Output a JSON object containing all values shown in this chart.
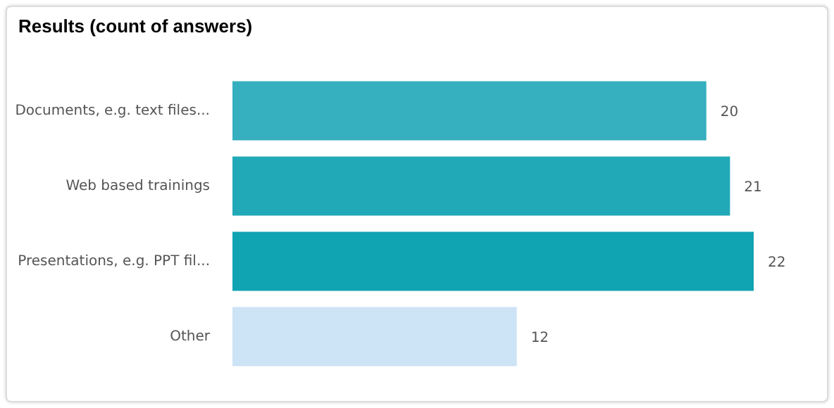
{
  "chart_data": {
    "type": "bar",
    "orientation": "horizontal",
    "title": "Results (count of answers)",
    "categories": [
      "Documents, e.g. text files...",
      "Web based trainings",
      "Presentations, e.g. PPT fil...",
      "Other"
    ],
    "values": [
      20,
      21,
      22,
      12
    ],
    "colors": [
      "#36afbf",
      "#22a9b8",
      "#10a3b2",
      "#cde3f6"
    ],
    "data_labels": true
  }
}
